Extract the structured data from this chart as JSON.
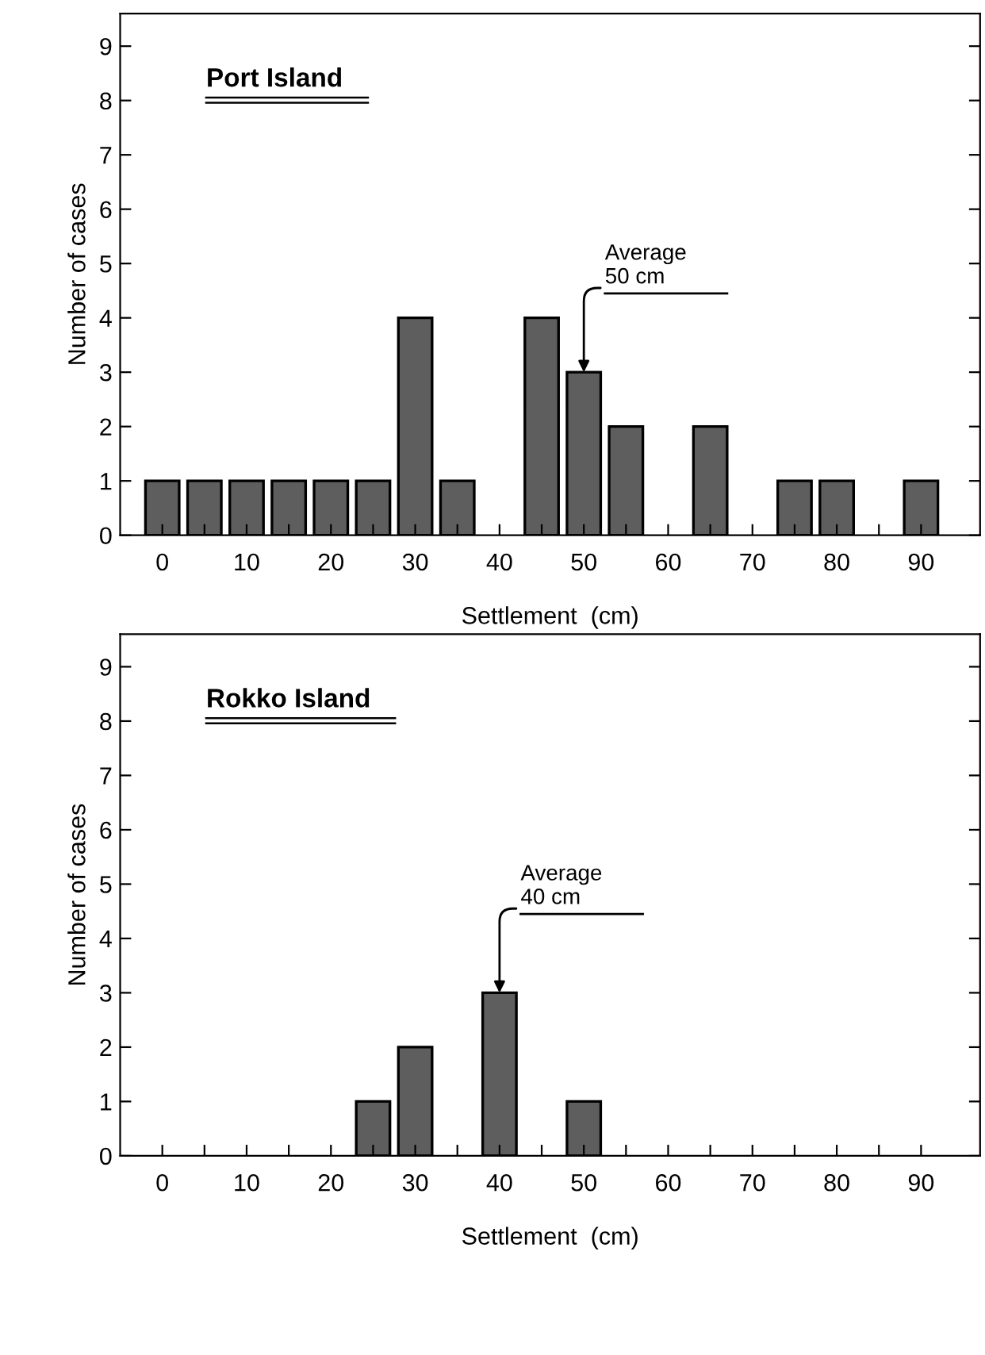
{
  "chart_data": [
    {
      "type": "bar",
      "title": "Port Island",
      "xlabel": "Settlement  (cm)",
      "ylabel": "Number of cases",
      "color": "#5e5e5e",
      "x": [
        0,
        5,
        10,
        15,
        20,
        25,
        30,
        35,
        40,
        45,
        50,
        55,
        60,
        65,
        70,
        75,
        80,
        85,
        90
      ],
      "values": [
        1,
        1,
        1,
        1,
        1,
        1,
        4,
        1,
        0,
        4,
        3,
        2,
        0,
        2,
        0,
        1,
        1,
        0,
        1
      ],
      "xlim": [
        -5,
        97
      ],
      "ylim": [
        0,
        9.6
      ],
      "xticks": [
        0,
        {
          "value": 5,
          "label": null
        },
        10,
        {
          "value": 15,
          "label": null
        },
        20,
        {
          "value": 25,
          "label": null
        },
        30,
        {
          "value": 35,
          "label": null
        },
        40,
        {
          "value": 45,
          "label": null
        },
        50,
        {
          "value": 55,
          "label": null
        },
        60,
        {
          "value": 65,
          "label": null
        },
        70,
        {
          "value": 75,
          "label": null
        },
        80,
        {
          "value": 85,
          "label": null
        },
        90
      ],
      "yticks": [
        0,
        1,
        2,
        3,
        4,
        5,
        6,
        7,
        8,
        9
      ],
      "annotations": [
        {
          "text": "Average\n50 cm",
          "x": 50,
          "y": 3
        }
      ]
    },
    {
      "type": "bar",
      "title": "Rokko Island",
      "xlabel": "Settlement  (cm)",
      "ylabel": "Number of cases",
      "color": "#5e5e5e",
      "x": [
        0,
        5,
        10,
        15,
        20,
        25,
        30,
        35,
        40,
        45,
        50,
        55,
        60,
        65,
        70,
        75,
        80,
        85,
        90
      ],
      "values": [
        0,
        0,
        0,
        0,
        0,
        1,
        2,
        0,
        3,
        0,
        1,
        0,
        0,
        0,
        0,
        0,
        0,
        0,
        0
      ],
      "xlim": [
        -5,
        97
      ],
      "ylim": [
        0,
        9.6
      ],
      "xticks": [
        0,
        {
          "value": 5,
          "label": null
        },
        10,
        {
          "value": 15,
          "label": null
        },
        20,
        {
          "value": 25,
          "label": null
        },
        30,
        {
          "value": 35,
          "label": null
        },
        40,
        {
          "value": 45,
          "label": null
        },
        50,
        {
          "value": 55,
          "label": null
        },
        60,
        {
          "value": 65,
          "label": null
        },
        70,
        {
          "value": 75,
          "label": null
        },
        80,
        {
          "value": 85,
          "label": null
        },
        90
      ],
      "yticks": [
        0,
        1,
        2,
        3,
        4,
        5,
        6,
        7,
        8,
        9
      ],
      "annotations": [
        {
          "text": "Average\n40 cm",
          "x": 40,
          "y": 3
        }
      ]
    }
  ]
}
